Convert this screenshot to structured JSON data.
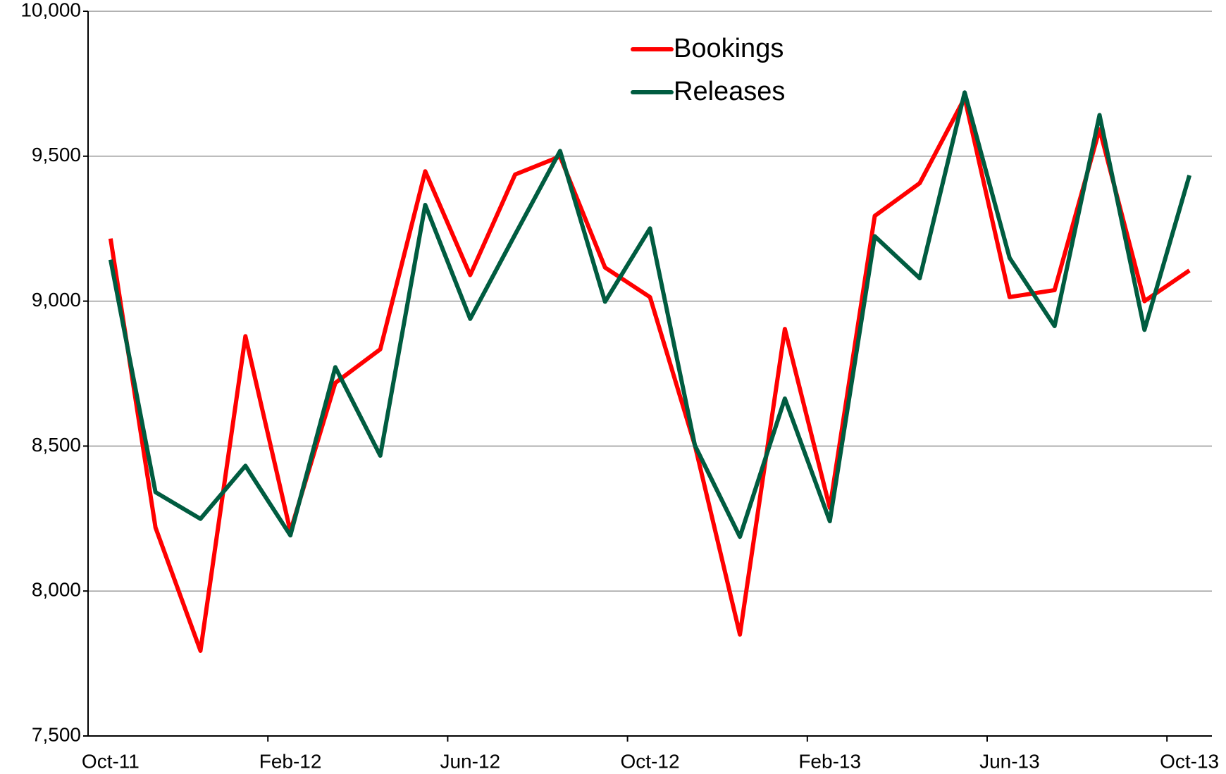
{
  "chart_data": {
    "type": "line",
    "categories": [
      "Oct-11",
      null,
      null,
      null,
      "Feb-12",
      null,
      null,
      null,
      "Jun-12",
      null,
      null,
      null,
      "Oct-12",
      null,
      null,
      null,
      "Feb-13",
      null,
      null,
      null,
      "Jun-13",
      null,
      null,
      null,
      "Oct-13"
    ],
    "series": [
      {
        "name": "Bookings",
        "color": "#ff0000",
        "values": [
          9216,
          8219,
          7794,
          8879,
          8206,
          8718,
          8834,
          9448,
          9090,
          9437,
          9499,
          9116,
          9014,
          8502,
          7850,
          8904,
          8287,
          9294,
          9407,
          9701,
          9014,
          9038,
          9593,
          9000,
          9106
        ]
      },
      {
        "name": "Releases",
        "color": "#005c40",
        "values": [
          9143,
          8341,
          8249,
          8432,
          8192,
          8772,
          8467,
          9332,
          8939,
          9230,
          9518,
          8998,
          9251,
          8502,
          8187,
          8664,
          8241,
          9224,
          9079,
          9720,
          9149,
          8914,
          9642,
          8901,
          9434
        ]
      }
    ],
    "ylim": [
      7500,
      10000
    ],
    "yticks": [
      {
        "value": 7500,
        "label": "7,500"
      },
      {
        "value": 8000,
        "label": "8,000"
      },
      {
        "value": 8500,
        "label": "8,500"
      },
      {
        "value": 9000,
        "label": "9,000"
      },
      {
        "value": 9500,
        "label": "9,500"
      },
      {
        "value": 10000,
        "label": "10,000"
      }
    ],
    "grid": true,
    "legend": "top"
  }
}
